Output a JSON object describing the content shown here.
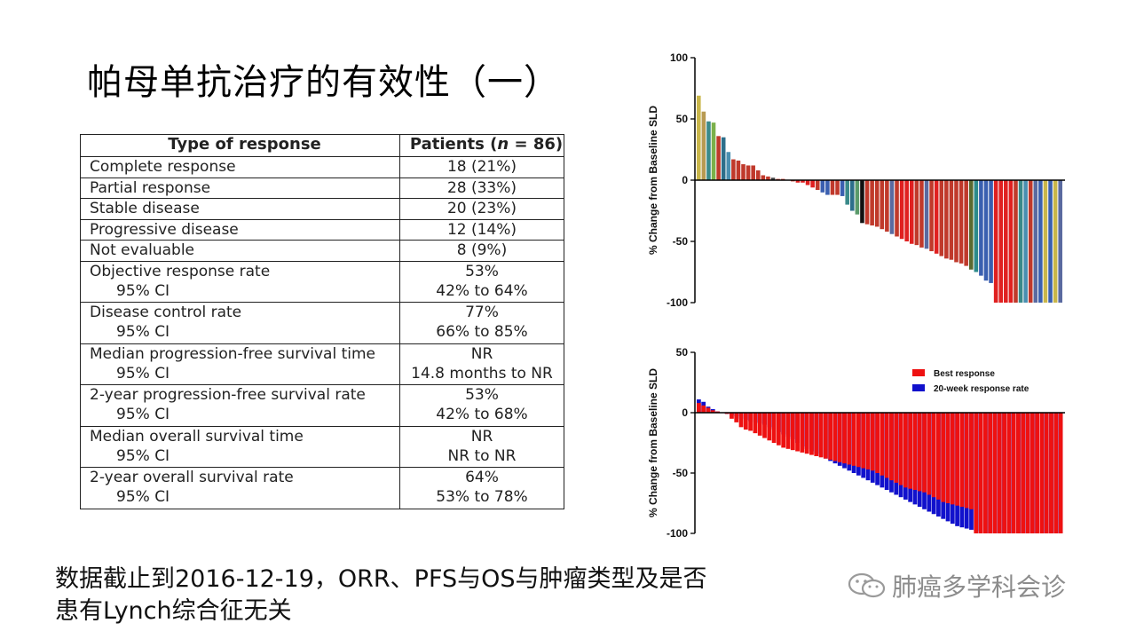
{
  "title": "帕母单抗治疗的有效性（一）",
  "table": {
    "header": {
      "type": "Type of response",
      "patients_prefix": "Patients (",
      "patients_n": "n",
      "patients_suffix": " = 86)"
    },
    "rows": [
      {
        "label": "Complete response",
        "value": "18 (21%)"
      },
      {
        "label": "Partial response",
        "value": "28 (33%)"
      },
      {
        "label": "Stable disease",
        "value": "20 (23%)"
      },
      {
        "label": "Progressive disease",
        "value": "12 (14%)"
      },
      {
        "label": "Not evaluable",
        "value": "8 (9%)"
      },
      {
        "label": "Objective response rate",
        "value": "53%",
        "ci_label": "95% CI",
        "ci": "42% to 64%"
      },
      {
        "label": "Disease control rate",
        "value": "77%",
        "ci_label": "95% CI",
        "ci": "66% to 85%"
      },
      {
        "label": "Median progression-free survival time",
        "value": "NR",
        "ci_label": "95% CI",
        "ci": "14.8 months to NR"
      },
      {
        "label": "2-year progression-free survival rate",
        "value": "53%",
        "ci_label": "95% CI",
        "ci": "42% to 68%"
      },
      {
        "label": "Median overall survival time",
        "value": "NR",
        "ci_label": "95% CI",
        "ci": "NR to NR"
      },
      {
        "label": "2-year overall survival rate",
        "value": "64%",
        "ci_label": "95% CI",
        "ci": "53% to 78%"
      }
    ]
  },
  "chart_data": [
    {
      "type": "bar",
      "subtype": "waterfall",
      "ylabel": "% Change from Baseline SLD",
      "ylim": [
        -100,
        100
      ],
      "yticks": [
        100,
        50,
        0,
        -50,
        -100
      ],
      "values": [
        69,
        56,
        48,
        47,
        36,
        35,
        23,
        17,
        16,
        13,
        12,
        12,
        8,
        4,
        3,
        2,
        1,
        1,
        0,
        -1,
        -2,
        -2,
        -4,
        -6,
        -8,
        -10,
        -12,
        -12,
        -12,
        -13,
        -20,
        -25,
        -28,
        -35,
        -36,
        -37,
        -38,
        -40,
        -42,
        -44,
        -46,
        -48,
        -50,
        -52,
        -53,
        -55,
        -56,
        -58,
        -60,
        -62,
        -64,
        -65,
        -67,
        -68,
        -70,
        -73,
        -75,
        -78,
        -82,
        -84,
        -100,
        -100,
        -100,
        -100,
        -100,
        -100,
        -100,
        -100,
        -100,
        -100,
        -100,
        -100,
        -100,
        -100
      ],
      "colors": [
        "#c9b64a",
        "#b89a52",
        "#3a8a8a",
        "#7bb04a",
        "#c0392b",
        "#2c6e8a",
        "#4a8fb0",
        "#c0392b",
        "#c0392b",
        "#c0392b",
        "#c0392b",
        "#c0392b",
        "#c0392b",
        "#c0392b",
        "#c0392b",
        "#444444",
        "#c0392b",
        "#c0392b",
        "#c0392b",
        "#c0392b",
        "#e02020",
        "#e02020",
        "#e02020",
        "#e02020",
        "#c0392b",
        "#3a5fb0",
        "#3a5fb0",
        "#c0392b",
        "#c0392b",
        "#3a5fb0",
        "#3a8a8a",
        "#2c6e8a",
        "#5a9a6a",
        "#111111",
        "#c0392b",
        "#c0392b",
        "#c0392b",
        "#c0392b",
        "#c0392b",
        "#5a6aa0",
        "#c0392b",
        "#e02020",
        "#e02020",
        "#e02020",
        "#c0392b",
        "#c0392b",
        "#5a6aa0",
        "#c0392b",
        "#e02020",
        "#c0392b",
        "#c0392b",
        "#c0392b",
        "#c0392b",
        "#c0392b",
        "#c0392b",
        "#5a6a30",
        "#2c8a8a",
        "#3a5fb0",
        "#3a5fb0",
        "#3a5fb0",
        "#e02020",
        "#e02020",
        "#e02020",
        "#e02020",
        "#c0392b",
        "#3a8a8a",
        "#4a8fb0",
        "#c0392b",
        "#5a6aa0",
        "#3a5fb0",
        "#c9b64a",
        "#3a5fb0",
        "#c9b64a",
        "#5a6aa0"
      ]
    },
    {
      "type": "bar",
      "subtype": "overlaid-waterfall",
      "ylabel": "% Change from Baseline SLD",
      "ylim": [
        -100,
        50
      ],
      "yticks": [
        50,
        0,
        -50,
        -100
      ],
      "legend": {
        "position": "top-right"
      },
      "series": [
        {
          "name": "Best response",
          "color": "#ee1111",
          "values": [
            8,
            6,
            4,
            2,
            1,
            0,
            -1,
            -5,
            -8,
            -12,
            -14,
            -15,
            -17,
            -19,
            -21,
            -23,
            -25,
            -27,
            -29,
            -30,
            -31,
            -32,
            -33,
            -34,
            -35,
            -36,
            -37,
            -38,
            -39,
            -40,
            -41,
            -42,
            -43,
            -44,
            -45,
            -46,
            -47,
            -48,
            -50,
            -52,
            -54,
            -56,
            -58,
            -60,
            -62,
            -63,
            -64,
            -65,
            -66,
            -68,
            -70,
            -72,
            -74,
            -75,
            -76,
            -77,
            -78,
            -79,
            -80,
            -100,
            -100,
            -100,
            -100,
            -100,
            -100,
            -100,
            -100,
            -100,
            -100,
            -100,
            -100,
            -100,
            -100,
            -100,
            -100,
            -100,
            -100,
            -100
          ]
        },
        {
          "name": "20-week response rate",
          "color": "#1111cc",
          "values": [
            11,
            9,
            5,
            3,
            1,
            0,
            -1,
            -2,
            -3,
            -5,
            -6,
            -7,
            -8,
            -9,
            -10,
            -12,
            -14,
            -16,
            -18,
            -20,
            -22,
            -25,
            -28,
            -30,
            -32,
            -34,
            -36,
            -38,
            -40,
            -42,
            -44,
            -46,
            -48,
            -50,
            -52,
            -54,
            -56,
            -58,
            -60,
            -62,
            -64,
            -66,
            -68,
            -70,
            -72,
            -74,
            -76,
            -78,
            -80,
            -82,
            -84,
            -86,
            -88,
            -90,
            -92,
            -94,
            -95,
            -96,
            -97,
            -98,
            -100,
            -100,
            -100,
            -100,
            -100,
            -100,
            -100,
            -100,
            -100,
            -100,
            -100,
            -100,
            -100,
            -100,
            -100,
            -100,
            -100,
            -100
          ]
        }
      ]
    }
  ],
  "footnote": {
    "line1": "数据截止到2016-12-19，ORR、PFS与OS与肿瘤类型及是否",
    "line2": "患有Lynch综合征无关"
  },
  "watermark": {
    "text": "肺癌多学科会诊",
    "icon": "wechat-icon"
  }
}
